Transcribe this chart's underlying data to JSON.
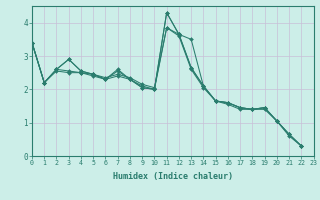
{
  "xlabel": "Humidex (Indice chaleur)",
  "bg_color": "#cceee8",
  "line_color": "#2a7d6e",
  "grid_color": "#c8c0d8",
  "xlim": [
    0,
    23
  ],
  "ylim": [
    0,
    4.5
  ],
  "yticks": [
    0,
    1,
    2,
    3,
    4
  ],
  "xticks": [
    0,
    1,
    2,
    3,
    4,
    5,
    6,
    7,
    8,
    9,
    10,
    11,
    12,
    13,
    14,
    15,
    16,
    17,
    18,
    19,
    20,
    21,
    22,
    23
  ],
  "lines": [
    {
      "x": [
        0,
        1,
        2,
        3,
        4,
        5,
        6,
        7,
        8,
        9,
        10,
        11,
        12,
        13,
        14,
        15,
        16,
        17,
        18,
        19,
        20,
        21,
        22
      ],
      "y": [
        3.4,
        2.2,
        2.6,
        2.9,
        2.55,
        2.45,
        2.3,
        2.6,
        2.3,
        2.05,
        2.0,
        4.3,
        3.65,
        2.65,
        2.1,
        1.65,
        1.6,
        1.45,
        1.4,
        1.45,
        1.05,
        0.65,
        0.3
      ]
    },
    {
      "x": [
        0,
        1,
        2,
        3,
        4,
        5,
        6,
        7,
        8,
        9,
        10,
        11,
        12,
        13,
        14,
        15,
        16,
        17,
        18,
        19,
        20,
        21,
        22
      ],
      "y": [
        3.4,
        2.2,
        2.6,
        2.55,
        2.5,
        2.45,
        2.35,
        2.45,
        2.35,
        2.15,
        2.05,
        3.85,
        3.65,
        3.5,
        2.1,
        1.65,
        1.6,
        1.45,
        1.4,
        1.45,
        1.05,
        0.65,
        0.3
      ]
    },
    {
      "x": [
        0,
        1,
        2,
        3,
        4,
        5,
        6,
        7,
        8,
        9,
        10,
        11,
        12,
        13,
        14,
        15,
        16,
        17,
        18,
        19,
        20,
        21,
        22
      ],
      "y": [
        3.4,
        2.2,
        2.6,
        2.9,
        2.55,
        2.45,
        2.3,
        2.55,
        2.3,
        2.05,
        2.0,
        4.3,
        3.65,
        2.65,
        2.1,
        1.65,
        1.6,
        1.45,
        1.4,
        1.45,
        1.05,
        0.65,
        0.3
      ]
    },
    {
      "x": [
        0,
        1,
        2,
        3,
        4,
        5,
        6,
        7,
        8,
        9,
        10,
        11,
        12,
        13,
        14,
        15,
        16,
        17,
        18,
        19,
        20,
        21,
        22
      ],
      "y": [
        3.4,
        2.2,
        2.55,
        2.5,
        2.5,
        2.4,
        2.3,
        2.4,
        2.3,
        2.1,
        2.0,
        3.85,
        3.6,
        2.6,
        2.05,
        1.65,
        1.55,
        1.4,
        1.4,
        1.4,
        1.05,
        0.6,
        0.3
      ]
    }
  ]
}
